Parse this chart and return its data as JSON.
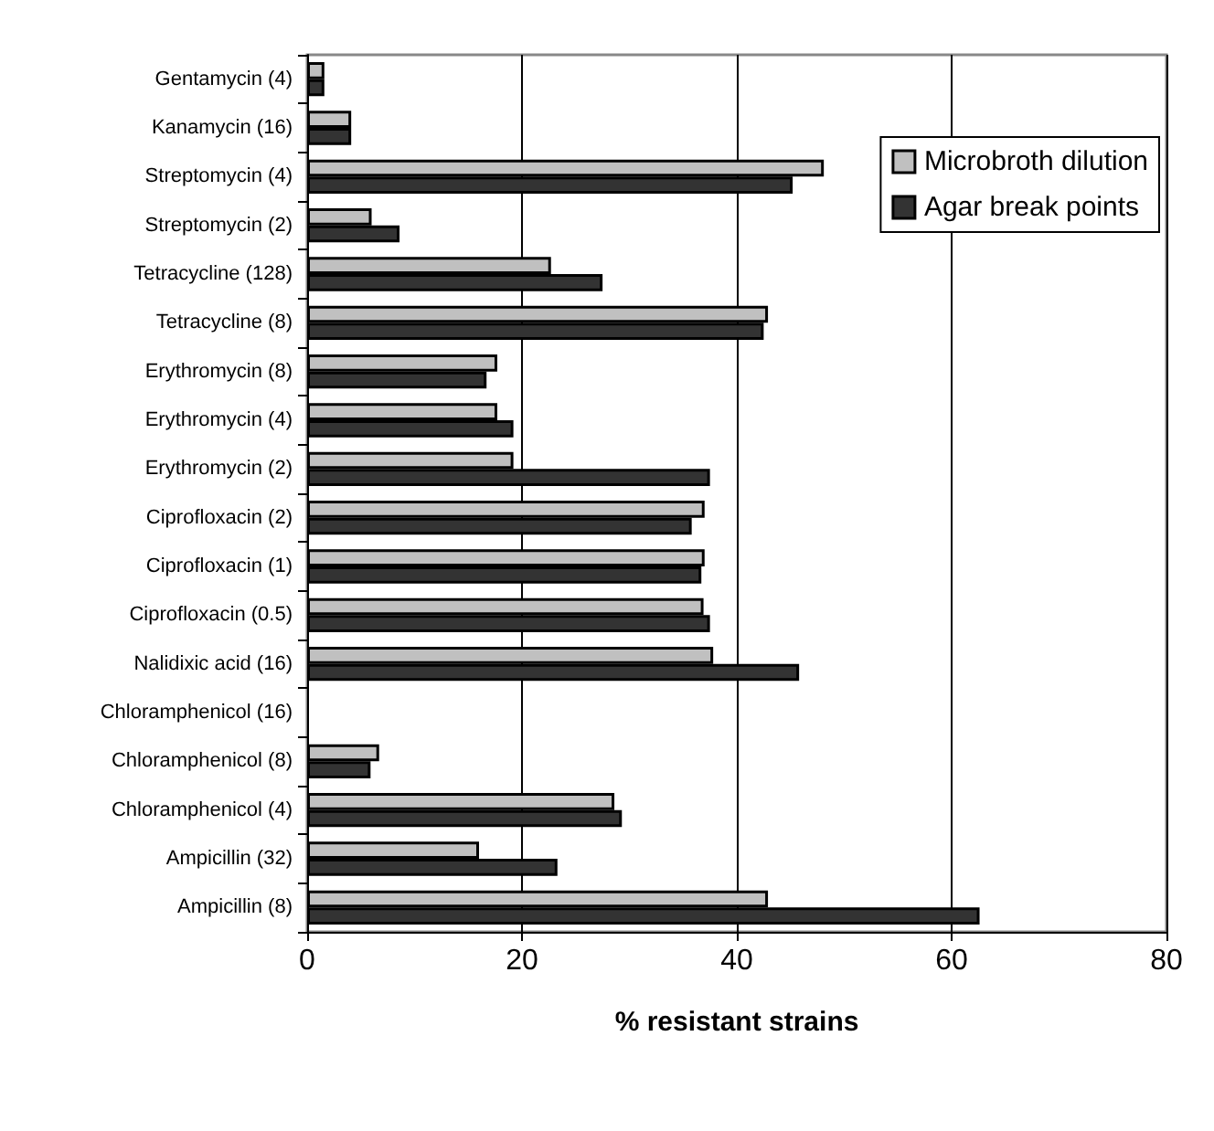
{
  "chart_data": {
    "type": "bar",
    "orientation": "horizontal",
    "categories": [
      "Gentamycin (4)",
      "Kanamycin (16)",
      "Streptomycin (4)",
      "Streptomycin (2)",
      "Tetracycline (128)",
      "Tetracycline (8)",
      "Erythromycin (8)",
      "Erythromycin (4)",
      "Erythromycin (2)",
      "Ciprofloxacin (2)",
      "Ciprofloxacin (1)",
      "Ciprofloxacin (0.5)",
      "Nalidixic acid (16)",
      "Chloramphenicol (16)",
      "Chloramphenicol (8)",
      "Chloramphenicol (4)",
      "Ampicillin (32)",
      "Ampicillin (8)"
    ],
    "series": [
      {
        "name": "Microbroth dilution",
        "color": "#c0c0c0",
        "values": [
          1.6,
          4.1,
          48.1,
          6.0,
          22.7,
          42.9,
          17.7,
          17.7,
          19.2,
          37.0,
          37.0,
          36.9,
          37.8,
          0,
          6.7,
          28.6,
          16.0,
          42.9
        ]
      },
      {
        "name": "Agar break points",
        "color": "#333333",
        "values": [
          1.6,
          4.1,
          45.2,
          8.6,
          27.5,
          42.5,
          16.7,
          19.2,
          37.5,
          35.8,
          36.7,
          37.5,
          45.8,
          0,
          5.9,
          29.3,
          23.3,
          62.6
        ]
      }
    ],
    "xlabel": "% resistant strains",
    "xlim": [
      0,
      80
    ],
    "xticks": [
      0,
      20,
      40,
      60,
      80
    ],
    "grid": "x",
    "legend": "top right"
  }
}
